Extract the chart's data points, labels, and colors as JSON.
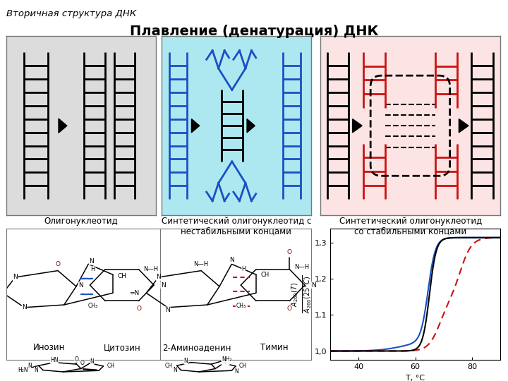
{
  "title_main": "Плавление (денатурация) ДНК",
  "title_sub": "Вторичная структура ДНК",
  "panel1_label": "Олигонуклеотид",
  "panel2_label": "Синтетический олигонуклеотид с\nнестабильными концами",
  "panel3_label": "Синтетический олигонуклеотид\nсо стабильными концами",
  "panel1_bg": "#dcdcdc",
  "panel2_bg": "#ade8f0",
  "panel3_bg": "#fce4e4",
  "ladder_color_black": "#111111",
  "ladder_color_blue": "#1a4fc4",
  "ladder_color_red": "#cc1111",
  "graph_xlabel": "T, °C",
  "graph_ytick_labels": [
    "1,0",
    "1,1",
    "1,2",
    "1,3"
  ],
  "graph_yticks": [
    1.0,
    1.1,
    1.2,
    1.3
  ],
  "graph_xticks": [
    40,
    60,
    80
  ],
  "graph_ylim": [
    0.975,
    1.34
  ],
  "graph_xlim": [
    30,
    90
  ]
}
